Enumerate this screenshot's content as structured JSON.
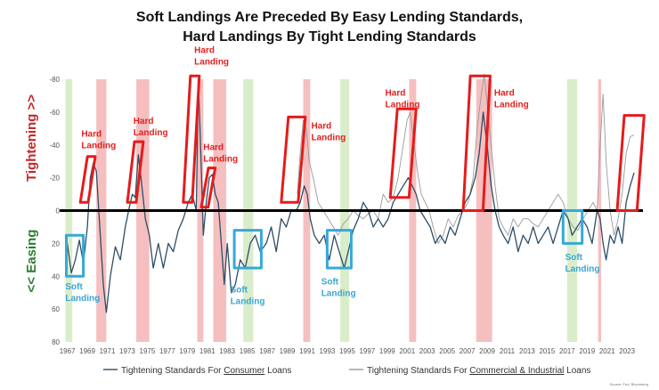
{
  "chart_data": {
    "type": "line",
    "title_lines": [
      "Soft Landings Are Preceded By Easy Lending Standards,",
      "Hard Landings By Tight Lending Standards"
    ],
    "ylabel_top": "Tightening >>",
    "ylabel_bottom": "<< Easing",
    "ylim": [
      -80,
      80
    ],
    "y_ticks": [
      {
        "value": 80,
        "label": "-80"
      },
      {
        "value": 60,
        "label": "-60"
      },
      {
        "value": 40,
        "label": "-40"
      },
      {
        "value": 20,
        "label": "-20"
      },
      {
        "value": 0,
        "label": "0"
      },
      {
        "value": -20,
        "label": "20"
      },
      {
        "value": -40,
        "label": "40"
      },
      {
        "value": -60,
        "label": "60"
      },
      {
        "value": -80,
        "label": "80"
      }
    ],
    "xlim": [
      1966.5,
      2025.3
    ],
    "x_ticks": [
      "1967",
      "1969",
      "1971",
      "1973",
      "1975",
      "1977",
      "1979",
      "1981",
      "1983",
      "1985",
      "1987",
      "1989",
      "1991",
      "1993",
      "1995",
      "1997",
      "1999",
      "2001",
      "2003",
      "2005",
      "2007",
      "2009",
      "2011",
      "2013",
      "2015",
      "2017",
      "2019",
      "2021",
      "2023"
    ],
    "recessions": [
      [
        1969.9,
        1970.9
      ],
      [
        1973.9,
        1975.2
      ],
      [
        1980.0,
        1980.6
      ],
      [
        1981.6,
        1982.9
      ],
      [
        1990.6,
        1991.3
      ],
      [
        2001.2,
        2001.9
      ],
      [
        2007.9,
        2009.5
      ],
      [
        2020.1,
        2020.4
      ]
    ],
    "soft_periods": [
      [
        1966.8,
        1967.5
      ],
      [
        1984.6,
        1985.6
      ],
      [
        1994.3,
        1995.2
      ],
      [
        2017.0,
        2018.0
      ]
    ],
    "hard_landings": [
      {
        "label_lines": [
          "Hard",
          "Landing"
        ],
        "x0": 1968.3,
        "x1": 1969.8,
        "y_low": 5,
        "y_high": 33,
        "text_year": 1968.4,
        "text_value": 45
      },
      {
        "label_lines": [
          "Hard",
          "Landing"
        ],
        "x0": 1973.0,
        "x1": 1974.6,
        "y_low": 5,
        "y_high": 42,
        "text_year": 1973.6,
        "text_value": 53
      },
      {
        "label_lines": [
          "Hard",
          "Landing"
        ],
        "x0": 1978.6,
        "x1": 1980.2,
        "y_low": 5,
        "y_high": 82,
        "text_year": 1979.7,
        "text_value": 96
      },
      {
        "label_lines": [
          "Hard",
          "Landing"
        ],
        "x0": 1980.4,
        "x1": 1981.8,
        "y_low": 2,
        "y_high": 26,
        "text_year": 1980.6,
        "text_value": 37
      },
      {
        "label_lines": [
          "Hard",
          "Landing"
        ],
        "x0": 1988.4,
        "x1": 1990.8,
        "y_low": 5,
        "y_high": 57,
        "text_year": 1991.4,
        "text_value": 50
      },
      {
        "label_lines": [
          "Hard",
          "Landing"
        ],
        "x0": 1999.3,
        "x1": 2001.9,
        "y_low": 8,
        "y_high": 62,
        "text_year": 1998.8,
        "text_value": 70
      },
      {
        "label_lines": [
          "Hard",
          "Landing"
        ],
        "x0": 2006.6,
        "x1": 2009.3,
        "y_low": 0,
        "y_high": 82,
        "text_year": 2009.7,
        "text_value": 70
      },
      {
        "label_lines": [],
        "x0": 2022.0,
        "x1": 2024.7,
        "y_low": 0,
        "y_high": 58,
        "text_year": 2022.0,
        "text_value": 0
      }
    ],
    "soft_landings": [
      {
        "label_lines": [
          "Soft",
          "Landing"
        ],
        "x0": 1966.9,
        "x1": 1968.6,
        "y_low": -40,
        "y_high": -15,
        "text_year": 1966.8,
        "text_value": -48
      },
      {
        "label_lines": [
          "Soft",
          "Landing"
        ],
        "x0": 1983.7,
        "x1": 1986.4,
        "y_low": -35,
        "y_high": -12,
        "text_year": 1983.3,
        "text_value": -50
      },
      {
        "label_lines": [
          "Soft",
          "Landing"
        ],
        "x0": 1993.0,
        "x1": 1995.4,
        "y_low": -35,
        "y_high": -12,
        "text_year": 1992.4,
        "text_value": -45
      },
      {
        "label_lines": [
          "Soft",
          "Landing"
        ],
        "x0": 2016.6,
        "x1": 2018.5,
        "y_low": -20,
        "y_high": 0,
        "text_year": 2016.8,
        "text_value": -30
      }
    ],
    "series": [
      {
        "name": "Tightening Standards For Consumer Loans",
        "legend_parts": [
          "Tightening Standards For ",
          "Consumer",
          " Loans"
        ],
        "color": "#2e4d66",
        "points": [
          [
            1967.0,
            -20
          ],
          [
            1967.4,
            -38
          ],
          [
            1967.8,
            -30
          ],
          [
            1968.2,
            -18
          ],
          [
            1968.6,
            -32
          ],
          [
            1969.0,
            -10
          ],
          [
            1969.3,
            20
          ],
          [
            1969.6,
            29
          ],
          [
            1969.9,
            24
          ],
          [
            1970.2,
            -5
          ],
          [
            1970.6,
            -45
          ],
          [
            1970.9,
            -62
          ],
          [
            1971.3,
            -40
          ],
          [
            1971.8,
            -22
          ],
          [
            1972.3,
            -30
          ],
          [
            1972.8,
            -10
          ],
          [
            1973.2,
            2
          ],
          [
            1973.5,
            10
          ],
          [
            1973.8,
            8
          ],
          [
            1974.1,
            34
          ],
          [
            1974.4,
            18
          ],
          [
            1974.8,
            -5
          ],
          [
            1975.2,
            -15
          ],
          [
            1975.6,
            -35
          ],
          [
            1976.1,
            -20
          ],
          [
            1976.6,
            -35
          ],
          [
            1977.1,
            -20
          ],
          [
            1977.6,
            -25
          ],
          [
            1978.1,
            -12
          ],
          [
            1978.6,
            -5
          ],
          [
            1979.1,
            5
          ],
          [
            1979.5,
            10
          ],
          [
            1979.9,
            0
          ],
          [
            1980.1,
            79
          ],
          [
            1980.3,
            45
          ],
          [
            1980.6,
            -15
          ],
          [
            1980.9,
            5
          ],
          [
            1981.2,
            20
          ],
          [
            1981.5,
            22
          ],
          [
            1981.8,
            10
          ],
          [
            1982.1,
            5
          ],
          [
            1982.4,
            -20
          ],
          [
            1982.7,
            -45
          ],
          [
            1983.0,
            -20
          ],
          [
            1983.4,
            -50
          ],
          [
            1983.8,
            -45
          ],
          [
            1984.3,
            -30
          ],
          [
            1984.8,
            -35
          ],
          [
            1985.3,
            -20
          ],
          [
            1985.8,
            -15
          ],
          [
            1986.3,
            -25
          ],
          [
            1986.9,
            -20
          ],
          [
            1987.4,
            -10
          ],
          [
            1987.9,
            -25
          ],
          [
            1988.4,
            -5
          ],
          [
            1988.9,
            -10
          ],
          [
            1989.4,
            0
          ],
          [
            1989.9,
            0
          ],
          [
            1990.3,
            5
          ],
          [
            1990.7,
            15
          ],
          [
            1991.0,
            10
          ],
          [
            1991.3,
            -5
          ],
          [
            1991.7,
            -15
          ],
          [
            1992.2,
            -20
          ],
          [
            1992.7,
            -15
          ],
          [
            1993.2,
            -30
          ],
          [
            1993.7,
            -15
          ],
          [
            1994.2,
            -25
          ],
          [
            1994.7,
            -35
          ],
          [
            1995.1,
            -25
          ],
          [
            1995.6,
            -12
          ],
          [
            1996.1,
            -5
          ],
          [
            1996.6,
            5
          ],
          [
            1997.1,
            0
          ],
          [
            1997.6,
            -10
          ],
          [
            1998.1,
            -5
          ],
          [
            1998.6,
            -10
          ],
          [
            1999.1,
            -5
          ],
          [
            1999.6,
            5
          ],
          [
            2000.1,
            10
          ],
          [
            2000.6,
            15
          ],
          [
            2001.1,
            20
          ],
          [
            2001.5,
            15
          ],
          [
            2001.9,
            10
          ],
          [
            2002.3,
            0
          ],
          [
            2002.8,
            -5
          ],
          [
            2003.3,
            -10
          ],
          [
            2003.8,
            -20
          ],
          [
            2004.3,
            -15
          ],
          [
            2004.8,
            -20
          ],
          [
            2005.3,
            -10
          ],
          [
            2005.8,
            -15
          ],
          [
            2006.3,
            -5
          ],
          [
            2006.8,
            5
          ],
          [
            2007.3,
            10
          ],
          [
            2007.8,
            20
          ],
          [
            2008.2,
            35
          ],
          [
            2008.6,
            60
          ],
          [
            2009.0,
            40
          ],
          [
            2009.4,
            15
          ],
          [
            2009.8,
            0
          ],
          [
            2010.2,
            -10
          ],
          [
            2010.6,
            -15
          ],
          [
            2011.1,
            -20
          ],
          [
            2011.6,
            -10
          ],
          [
            2012.1,
            -25
          ],
          [
            2012.6,
            -15
          ],
          [
            2013.1,
            -20
          ],
          [
            2013.6,
            -10
          ],
          [
            2014.1,
            -20
          ],
          [
            2014.6,
            -15
          ],
          [
            2015.1,
            -10
          ],
          [
            2015.6,
            -20
          ],
          [
            2016.1,
            -10
          ],
          [
            2016.6,
            0
          ],
          [
            2017.1,
            -5
          ],
          [
            2017.5,
            -15
          ],
          [
            2018.0,
            -10
          ],
          [
            2018.5,
            -5
          ],
          [
            2019.0,
            -10
          ],
          [
            2019.5,
            -20
          ],
          [
            2020.0,
            0
          ],
          [
            2020.3,
            -5
          ],
          [
            2020.6,
            -20
          ],
          [
            2020.9,
            -30
          ],
          [
            2021.3,
            -15
          ],
          [
            2021.7,
            -20
          ],
          [
            2022.1,
            -10
          ],
          [
            2022.5,
            -20
          ],
          [
            2022.9,
            5
          ],
          [
            2023.3,
            15
          ],
          [
            2023.7,
            23
          ]
        ]
      },
      {
        "name": "Tightening Standards For Commercial & Industrial Loans",
        "legend_parts": [
          "Tightening Standards For ",
          "Commercial & Industrial",
          " Loans"
        ],
        "color": "#9a9a9a",
        "points": [
          [
            1990.0,
            10
          ],
          [
            1990.3,
            35
          ],
          [
            1990.6,
            55
          ],
          [
            1990.9,
            50
          ],
          [
            1991.2,
            30
          ],
          [
            1991.6,
            20
          ],
          [
            1992.1,
            5
          ],
          [
            1992.6,
            0
          ],
          [
            1993.1,
            -5
          ],
          [
            1993.6,
            -10
          ],
          [
            1994.1,
            -15
          ],
          [
            1994.6,
            -8
          ],
          [
            1995.1,
            -5
          ],
          [
            1995.6,
            0
          ],
          [
            1996.1,
            -3
          ],
          [
            1996.6,
            -5
          ],
          [
            1997.1,
            -2
          ],
          [
            1997.6,
            0
          ],
          [
            1998.1,
            -5
          ],
          [
            1998.6,
            10
          ],
          [
            1999.1,
            5
          ],
          [
            1999.6,
            8
          ],
          [
            2000.1,
            20
          ],
          [
            2000.6,
            40
          ],
          [
            2001.0,
            55
          ],
          [
            2001.3,
            60
          ],
          [
            2001.6,
            45
          ],
          [
            2002.0,
            25
          ],
          [
            2002.4,
            10
          ],
          [
            2002.8,
            5
          ],
          [
            2003.2,
            0
          ],
          [
            2003.6,
            -10
          ],
          [
            2004.1,
            -20
          ],
          [
            2004.6,
            -15
          ],
          [
            2005.1,
            -5
          ],
          [
            2005.6,
            -10
          ],
          [
            2006.1,
            -3
          ],
          [
            2006.6,
            0
          ],
          [
            2007.1,
            5
          ],
          [
            2007.6,
            20
          ],
          [
            2008.0,
            50
          ],
          [
            2008.4,
            70
          ],
          [
            2008.7,
            83
          ],
          [
            2009.0,
            65
          ],
          [
            2009.4,
            40
          ],
          [
            2009.8,
            15
          ],
          [
            2010.2,
            -5
          ],
          [
            2010.6,
            -10
          ],
          [
            2011.1,
            -15
          ],
          [
            2011.6,
            -5
          ],
          [
            2012.1,
            -10
          ],
          [
            2012.6,
            -5
          ],
          [
            2013.1,
            -5
          ],
          [
            2013.6,
            -8
          ],
          [
            2014.1,
            -10
          ],
          [
            2014.6,
            -5
          ],
          [
            2015.1,
            0
          ],
          [
            2015.6,
            5
          ],
          [
            2016.1,
            10
          ],
          [
            2016.6,
            5
          ],
          [
            2017.1,
            -5
          ],
          [
            2017.6,
            -10
          ],
          [
            2018.1,
            -12
          ],
          [
            2018.6,
            -5
          ],
          [
            2019.1,
            0
          ],
          [
            2019.6,
            5
          ],
          [
            2020.0,
            0
          ],
          [
            2020.3,
            40
          ],
          [
            2020.6,
            71
          ],
          [
            2020.9,
            30
          ],
          [
            2021.3,
            0
          ],
          [
            2021.7,
            -15
          ],
          [
            2022.1,
            -5
          ],
          [
            2022.5,
            10
          ],
          [
            2022.9,
            35
          ],
          [
            2023.3,
            45
          ],
          [
            2023.7,
            46
          ]
        ]
      }
    ],
    "source": "Source: Fed, Bloomberg"
  }
}
